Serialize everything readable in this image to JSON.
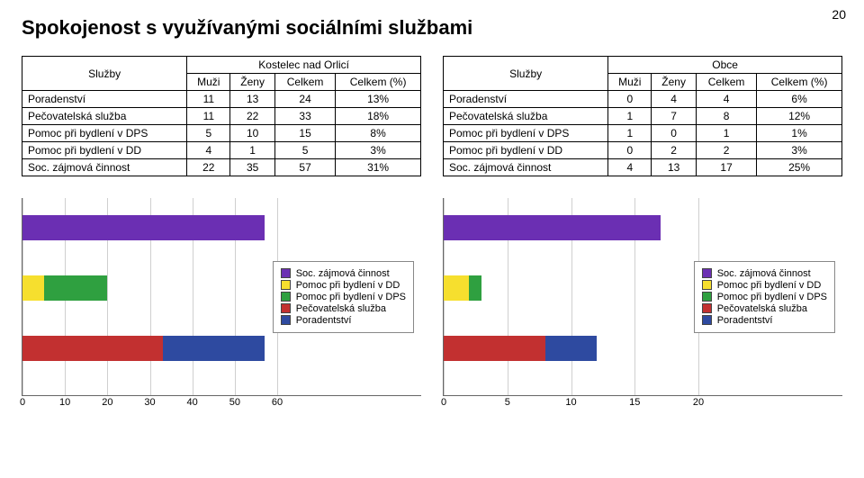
{
  "page_number": "20",
  "title": "Spokojenost s využívanými sociálními službami",
  "table_left": {
    "caption_top": "Kostelec nad Orlicí",
    "col_service": "Služby",
    "cols": [
      "Muži",
      "Ženy",
      "Celkem",
      "Celkem (%)"
    ],
    "rows": [
      {
        "label": "Poradenství",
        "vals": [
          "11",
          "13",
          "24",
          "13%"
        ]
      },
      {
        "label": "Pečovatelská služba",
        "vals": [
          "11",
          "22",
          "33",
          "18%"
        ]
      },
      {
        "label": "Pomoc při bydlení v DPS",
        "vals": [
          "5",
          "10",
          "15",
          "8%"
        ]
      },
      {
        "label": "Pomoc při bydlení v DD",
        "vals": [
          "4",
          "1",
          "5",
          "3%"
        ]
      },
      {
        "label": "Soc. zájmová činnost",
        "vals": [
          "22",
          "35",
          "57",
          "31%"
        ]
      }
    ]
  },
  "table_right": {
    "caption_top": "Obce",
    "col_service": "Služby",
    "cols": [
      "Muži",
      "Ženy",
      "Celkem",
      "Celkem (%)"
    ],
    "rows": [
      {
        "label": "Poradenství",
        "vals": [
          "0",
          "4",
          "4",
          "6%"
        ]
      },
      {
        "label": "Pečovatelská služba",
        "vals": [
          "1",
          "7",
          "8",
          "12%"
        ]
      },
      {
        "label": "Pomoc při bydlení v DPS",
        "vals": [
          "1",
          "0",
          "1",
          "1%"
        ]
      },
      {
        "label": "Pomoc při bydlení v DD",
        "vals": [
          "0",
          "2",
          "2",
          "3%"
        ]
      },
      {
        "label": "Soc. zájmová činnost",
        "vals": [
          "4",
          "13",
          "17",
          "25%"
        ]
      }
    ]
  },
  "chart_left": {
    "type": "stacked-horizontal-bar",
    "xmax": 60,
    "ticks": [
      0,
      10,
      20,
      30,
      40,
      50,
      60
    ],
    "series_order": [
      "Soc. zájmová činnost",
      "Pomoc při bydlení v DD",
      "Pomoc při bydlení v DPS",
      "Pečovatelská služba",
      "Poradentství"
    ],
    "colors": {
      "Soc. zájmová činnost": "#6b2fb3",
      "Pomoc při bydlení v DD": "#f6df2e",
      "Pomoc při bydlení v DPS": "#2fa040",
      "Pečovatelská služba": "#c23030",
      "Poradentství": "#2e4aa0"
    },
    "stacks": [
      {
        "y": 0,
        "segments": [
          {
            "series": "Soc. zájmová činnost",
            "value": 57
          }
        ]
      },
      {
        "y": 1,
        "segments": [
          {
            "series": "Pomoc při bydlení v DD",
            "value": 5
          },
          {
            "series": "Pomoc při bydlení v DPS",
            "value": 15
          }
        ]
      },
      {
        "y": 2,
        "segments": [
          {
            "series": "Pečovatelská služba",
            "value": 33
          },
          {
            "series": "Poradentství",
            "value": 24
          }
        ]
      }
    ]
  },
  "chart_right": {
    "type": "stacked-horizontal-bar",
    "xmax": 20,
    "ticks": [
      0,
      5,
      10,
      15,
      20
    ],
    "series_order": [
      "Soc. zájmová činnost",
      "Pomoc při bydlení v DD",
      "Pomoc při bydlení v DPS",
      "Pečovatelská služba",
      "Poradentství"
    ],
    "colors": {
      "Soc. zájmová činnost": "#6b2fb3",
      "Pomoc při bydlení v DD": "#f6df2e",
      "Pomoc při bydlení v DPS": "#2fa040",
      "Pečovatelská služba": "#c23030",
      "Poradentství": "#2e4aa0"
    },
    "stacks": [
      {
        "y": 0,
        "segments": [
          {
            "series": "Soc. zájmová činnost",
            "value": 17
          }
        ]
      },
      {
        "y": 1,
        "segments": [
          {
            "series": "Pomoc při bydlení v DD",
            "value": 2
          },
          {
            "series": "Pomoc při bydlení v DPS",
            "value": 1
          }
        ]
      },
      {
        "y": 2,
        "segments": [
          {
            "series": "Pečovatelská služba",
            "value": 8
          },
          {
            "series": "Poradentství",
            "value": 4
          }
        ]
      }
    ]
  },
  "legend": [
    "Soc. zajmová činnost",
    "Pomoc při bydlení v DD",
    "Pomoc při bydlení v DPS",
    "Pečovatelská služba",
    "Poradentství"
  ]
}
